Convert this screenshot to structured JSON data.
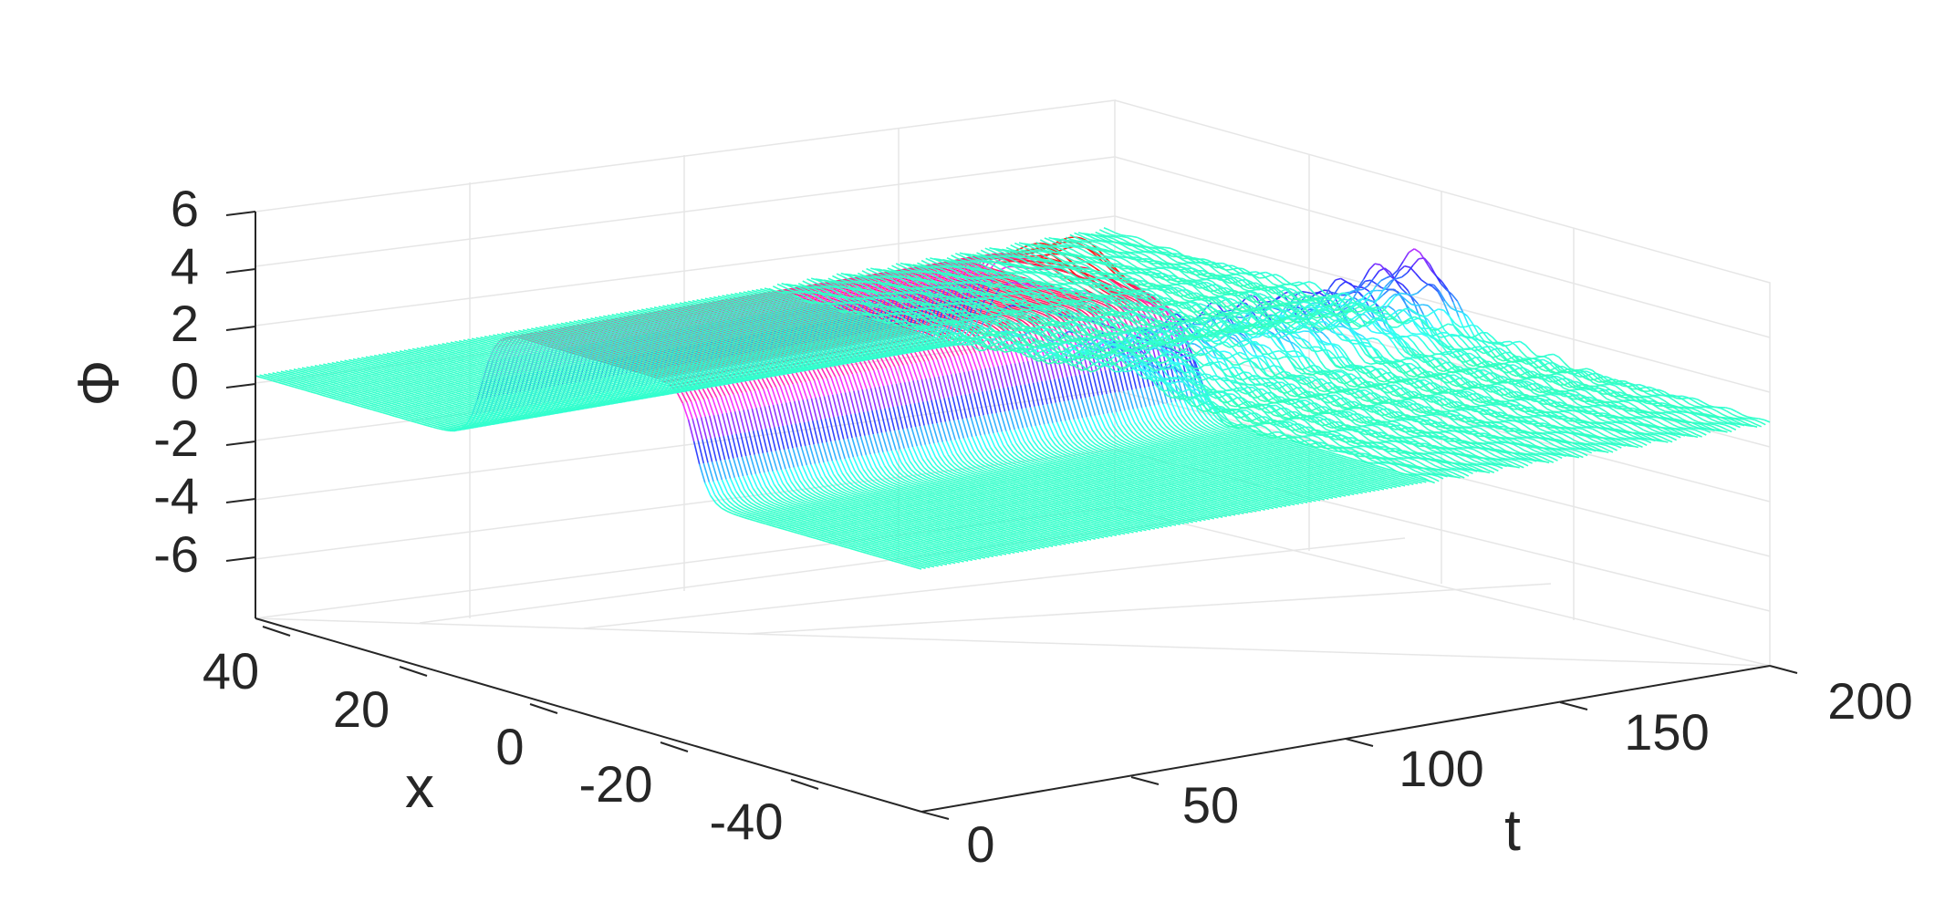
{
  "chart_data": {
    "type": "surface3d",
    "title": "",
    "axes": {
      "x": {
        "label": "x",
        "ticks": [
          "-40",
          "-20",
          "0",
          "20",
          "40"
        ],
        "range": [
          -50,
          50
        ]
      },
      "t": {
        "label": "t",
        "ticks": [
          "0",
          "50",
          "100",
          "150",
          "200"
        ],
        "range": [
          0,
          200
        ]
      },
      "phi": {
        "label": "Φ",
        "ticks": [
          "6",
          "4",
          "2",
          "0",
          "-2",
          "-4",
          "-6"
        ],
        "range": [
          -8,
          7
        ]
      }
    },
    "grid": true,
    "colormap": [
      "#ff1a1a",
      "#ff33ff",
      "#3333ff",
      "#33ffff",
      "#33ff99"
    ],
    "features": {
      "kink_plateau": {
        "t_range": [
          0,
          120
        ],
        "x_range": [
          -16,
          16
        ],
        "phi": 2
      },
      "baseline_phi": -2,
      "breather_peaks_t": [
        108,
        116,
        124,
        132,
        140,
        148,
        156,
        164,
        172,
        180,
        188,
        196
      ]
    }
  }
}
